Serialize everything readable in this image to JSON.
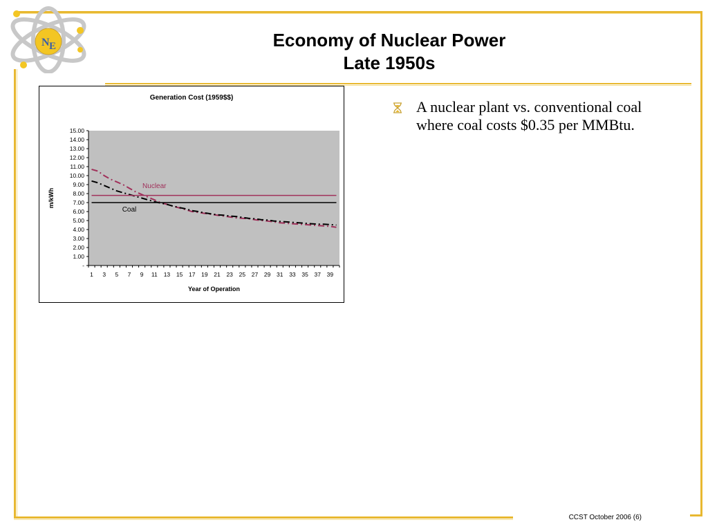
{
  "slide": {
    "title_line1": "Economy of Nuclear Power",
    "title_line2": "Late 1950s",
    "logo_text_n": "N",
    "logo_text_e": "E",
    "bullets": [
      "A nuclear plant vs. conventional coal where coal costs $0.35 per MMBtu."
    ],
    "footer": "CCST October 2006 (6)",
    "colors": {
      "frame": "#e8b830",
      "nuclear": "#a0305a",
      "coal": "#000000",
      "plot_bg": "#c0c0c0"
    }
  },
  "chart_data": {
    "type": "line",
    "title": "Generation Cost (1959$$)",
    "xlabel": "Year of Operation",
    "ylabel": "m/kWh",
    "ylim": [
      0,
      15
    ],
    "yticks": [
      "-",
      "1.00",
      "2.00",
      "3.00",
      "4.00",
      "5.00",
      "6.00",
      "7.00",
      "8.00",
      "9.00",
      "10.00",
      "11.00",
      "12.00",
      "13.00",
      "14.00",
      "15.00"
    ],
    "x": [
      1,
      2,
      3,
      4,
      5,
      6,
      7,
      8,
      9,
      10,
      11,
      12,
      13,
      14,
      15,
      16,
      17,
      18,
      19,
      20,
      21,
      22,
      23,
      24,
      25,
      26,
      27,
      28,
      29,
      30,
      31,
      32,
      33,
      34,
      35,
      36,
      37,
      38,
      39,
      40
    ],
    "xticks": [
      "1",
      "3",
      "5",
      "7",
      "9",
      "11",
      "13",
      "15",
      "17",
      "19",
      "21",
      "23",
      "25",
      "27",
      "29",
      "31",
      "33",
      "35",
      "37",
      "39"
    ],
    "grid": false,
    "series": [
      {
        "name": "Nuclear",
        "style": "dash-dot",
        "color": "#a0305a",
        "values": [
          10.7,
          10.5,
          10.0,
          9.6,
          9.3,
          9.0,
          8.6,
          8.2,
          7.9,
          7.6,
          7.3,
          7.0,
          6.8,
          6.6,
          6.4,
          6.2,
          6.0,
          5.9,
          5.8,
          5.7,
          5.6,
          5.5,
          5.4,
          5.3,
          5.25,
          5.2,
          5.1,
          5.0,
          4.95,
          4.85,
          4.75,
          4.7,
          4.65,
          4.6,
          4.55,
          4.5,
          4.45,
          4.4,
          4.35,
          4.25
        ]
      },
      {
        "name": "Coal",
        "style": "dash-dot",
        "color": "#000000",
        "values": [
          9.4,
          9.2,
          8.9,
          8.6,
          8.3,
          8.1,
          7.9,
          7.7,
          7.5,
          7.3,
          7.1,
          6.95,
          6.8,
          6.6,
          6.45,
          6.3,
          6.1,
          6.0,
          5.85,
          5.75,
          5.65,
          5.6,
          5.5,
          5.45,
          5.35,
          5.25,
          5.2,
          5.1,
          5.05,
          4.95,
          4.9,
          4.85,
          4.8,
          4.75,
          4.7,
          4.65,
          4.6,
          4.6,
          4.55,
          4.5
        ]
      },
      {
        "name": "Nuclear",
        "style": "solid",
        "color": "#a0305a",
        "values": [
          7.8,
          7.8,
          7.8,
          7.8,
          7.8,
          7.8,
          7.8,
          7.8,
          7.8,
          7.8,
          7.8,
          7.8,
          7.8,
          7.8,
          7.8,
          7.8,
          7.8,
          7.8,
          7.8,
          7.8,
          7.8,
          7.8,
          7.8,
          7.8,
          7.8,
          7.8,
          7.8,
          7.8,
          7.8,
          7.8,
          7.8,
          7.8,
          7.8,
          7.8,
          7.8,
          7.8,
          7.8,
          7.8,
          7.8,
          7.8
        ]
      },
      {
        "name": "Coal",
        "style": "solid",
        "color": "#000000",
        "values": [
          7.0,
          7.0,
          7.0,
          7.0,
          7.0,
          7.0,
          7.0,
          7.0,
          7.0,
          7.0,
          7.0,
          7.0,
          7.0,
          7.0,
          7.0,
          7.0,
          7.0,
          7.0,
          7.0,
          7.0,
          7.0,
          7.0,
          7.0,
          7.0,
          7.0,
          7.0,
          7.0,
          7.0,
          7.0,
          7.0,
          7.0,
          7.0,
          7.0,
          7.0,
          7.0,
          7.0,
          7.0,
          7.0,
          7.0,
          7.0
        ]
      }
    ],
    "annotations": [
      {
        "text": "Nuclear",
        "x": 11,
        "y": 8.6,
        "color": "#a0305a"
      },
      {
        "text": "Coal",
        "x": 7,
        "y": 6.0,
        "color": "#000000"
      }
    ]
  }
}
